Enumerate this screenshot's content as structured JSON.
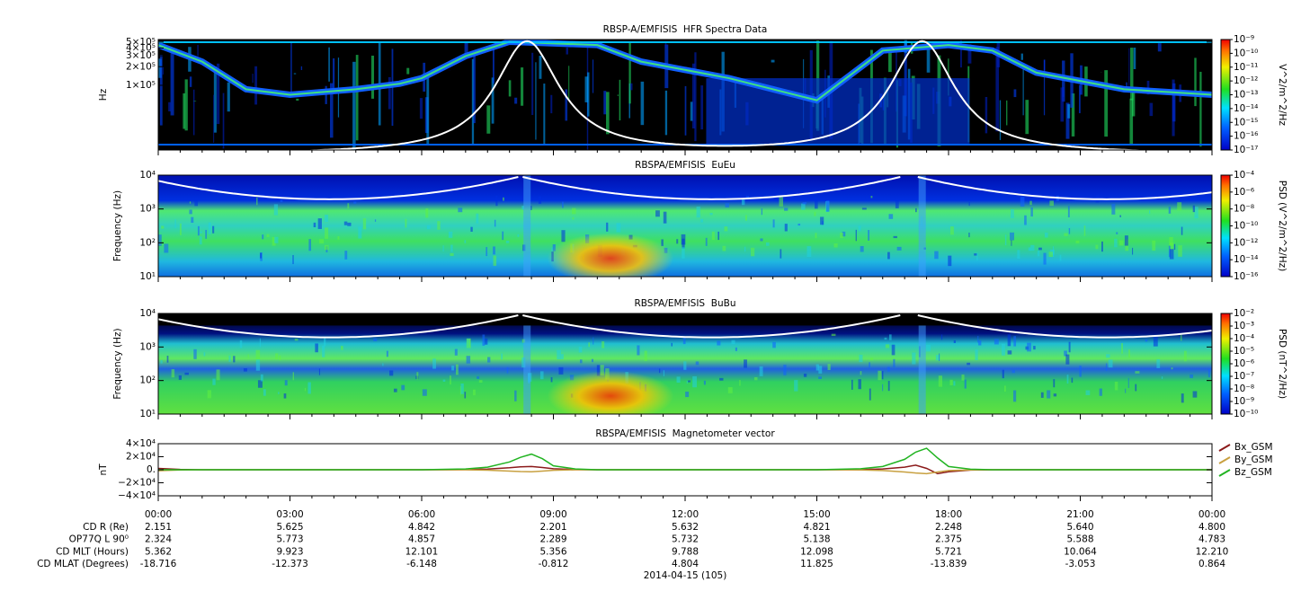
{
  "chart_data": [
    {
      "type": "spectrogram",
      "title": "RBSP-A/EMFISIS  HFR Spectra Data",
      "y_label": "Hz",
      "log_y": true,
      "xlim": [
        0,
        24
      ],
      "xticks": [
        0,
        3,
        6,
        9,
        12,
        15,
        18,
        21,
        24
      ],
      "ylim": [
        9000,
        550000
      ],
      "yticks": [
        {
          "value": 100000,
          "label": "1×10⁵"
        },
        {
          "value": 200000,
          "label": "2×10⁵"
        },
        {
          "value": 300000,
          "label": "3×10⁵"
        },
        {
          "value": 400000,
          "label": "4×10⁵"
        },
        {
          "value": 500000,
          "label": "5×10⁵"
        }
      ],
      "colorbar_label": "V^2/m^2/Hz",
      "clim": [
        1e-17,
        1e-09
      ],
      "cticks": [
        {
          "value": 1e-17,
          "label": "10⁻¹⁷"
        },
        {
          "value": 1e-16,
          "label": "10⁻¹⁶"
        },
        {
          "value": 1e-15,
          "label": "10⁻¹⁵"
        },
        {
          "value": 1e-14,
          "label": "10⁻¹⁴"
        },
        {
          "value": 1e-13,
          "label": "10⁻¹³"
        },
        {
          "value": 1e-12,
          "label": "10⁻¹²"
        },
        {
          "value": 1e-11,
          "label": "10⁻¹¹"
        },
        {
          "value": 1e-10,
          "label": "10⁻¹⁰"
        },
        {
          "value": 1e-09,
          "label": "10⁻⁹"
        }
      ]
    },
    {
      "type": "spectrogram",
      "title": "RBSPA/EMFISIS  EuEu",
      "y_label": "Frequency (Hz)",
      "log_y": true,
      "xlim": [
        0,
        24
      ],
      "xticks": [
        0,
        3,
        6,
        9,
        12,
        15,
        18,
        21,
        24
      ],
      "ylim": [
        10,
        10000
      ],
      "yticks": [
        {
          "value": 10,
          "label": "10¹"
        },
        {
          "value": 100,
          "label": "10²"
        },
        {
          "value": 1000,
          "label": "10³"
        },
        {
          "value": 10000,
          "label": "10⁴"
        }
      ],
      "colorbar_label": "PSD (V^2/m^2/Hz)",
      "clim": [
        1e-16,
        0.0001
      ],
      "cticks": [
        {
          "value": 1e-16,
          "label": "10⁻¹⁶"
        },
        {
          "value": 1e-14,
          "label": "10⁻¹⁴"
        },
        {
          "value": 1e-12,
          "label": "10⁻¹²"
        },
        {
          "value": 1e-10,
          "label": "10⁻¹⁰"
        },
        {
          "value": 1e-08,
          "label": "10⁻⁸"
        },
        {
          "value": 1e-06,
          "label": "10⁻⁶"
        },
        {
          "value": 0.0001,
          "label": "10⁻⁴"
        }
      ]
    },
    {
      "type": "spectrogram",
      "title": "RBSPA/EMFISIS  BuBu",
      "y_label": "Frequency (Hz)",
      "log_y": true,
      "xlim": [
        0,
        24
      ],
      "xticks": [
        0,
        3,
        6,
        9,
        12,
        15,
        18,
        21,
        24
      ],
      "ylim": [
        10,
        10000
      ],
      "yticks": [
        {
          "value": 10,
          "label": "10¹"
        },
        {
          "value": 100,
          "label": "10²"
        },
        {
          "value": 1000,
          "label": "10³"
        },
        {
          "value": 10000,
          "label": "10⁴"
        }
      ],
      "colorbar_label": "PSD (nT^2/Hz)",
      "clim": [
        1e-10,
        0.01
      ],
      "cticks": [
        {
          "value": 1e-10,
          "label": "10⁻¹⁰"
        },
        {
          "value": 1e-09,
          "label": "10⁻⁹"
        },
        {
          "value": 1e-08,
          "label": "10⁻⁸"
        },
        {
          "value": 1e-07,
          "label": "10⁻⁷"
        },
        {
          "value": 1e-06,
          "label": "10⁻⁶"
        },
        {
          "value": 1e-05,
          "label": "10⁻⁵"
        },
        {
          "value": 0.0001,
          "label": "10⁻⁴"
        },
        {
          "value": 0.001,
          "label": "10⁻³"
        },
        {
          "value": 0.01,
          "label": "10⁻²"
        }
      ]
    },
    {
      "type": "line",
      "title": "RBSPA/EMFISIS  Magnetometer vector",
      "y_label": "nT",
      "xlim": [
        0,
        24
      ],
      "xticks": [
        {
          "value": 0,
          "label": "00:00"
        },
        {
          "value": 3,
          "label": "03:00"
        },
        {
          "value": 6,
          "label": "06:00"
        },
        {
          "value": 9,
          "label": "09:00"
        },
        {
          "value": 12,
          "label": "12:00"
        },
        {
          "value": 15,
          "label": "15:00"
        },
        {
          "value": 18,
          "label": "18:00"
        },
        {
          "value": 21,
          "label": "21:00"
        },
        {
          "value": 24,
          "label": "00:00"
        }
      ],
      "ylim": [
        -40000,
        40000
      ],
      "yticks": [
        {
          "value": -40000,
          "label": "−4×10⁴"
        },
        {
          "value": -20000,
          "label": "−2×10⁴"
        },
        {
          "value": 0,
          "label": "0."
        },
        {
          "value": 20000,
          "label": "2×10⁴"
        },
        {
          "value": 40000,
          "label": "4×10⁴"
        }
      ],
      "x": [
        0,
        0.5,
        1,
        2,
        3,
        4,
        5,
        6,
        7,
        7.5,
        8,
        8.25,
        8.5,
        8.75,
        9,
        9.5,
        10,
        11,
        12,
        13,
        14,
        15,
        16,
        16.5,
        17,
        17.25,
        17.5,
        17.75,
        18,
        18.5,
        19,
        20,
        21,
        22,
        23,
        24
      ],
      "series": [
        {
          "name": "Bx_GSM",
          "color": "#8b1a1a",
          "values": [
            2000,
            500,
            0,
            0,
            0,
            0,
            0,
            0,
            300,
            1000,
            3000,
            4500,
            5000,
            3500,
            1500,
            300,
            0,
            0,
            0,
            0,
            0,
            0,
            300,
            1200,
            4000,
            7000,
            2000,
            -6000,
            -3000,
            -500,
            0,
            0,
            0,
            0,
            0,
            0
          ]
        },
        {
          "name": "By_GSM",
          "color": "#c8a040",
          "values": [
            -1500,
            -300,
            0,
            0,
            0,
            0,
            0,
            0,
            -200,
            -700,
            -2000,
            -2800,
            -3000,
            -2000,
            -800,
            -200,
            0,
            0,
            0,
            0,
            0,
            0,
            -300,
            -1200,
            -3500,
            -5000,
            -6000,
            -3500,
            -1200,
            -300,
            0,
            0,
            0,
            0,
            0,
            0
          ]
        },
        {
          "name": "Bz_GSM",
          "color": "#22b422",
          "values": [
            0,
            0,
            0,
            0,
            0,
            0,
            0,
            0,
            1200,
            4000,
            12000,
            19000,
            24000,
            17000,
            6000,
            1200,
            0,
            0,
            0,
            0,
            0,
            0,
            1500,
            5000,
            16000,
            27000,
            33000,
            18000,
            5000,
            800,
            0,
            0,
            0,
            0,
            0,
            0
          ]
        }
      ]
    }
  ],
  "ephemeris": {
    "date": "2014-04-15 (105)",
    "rows": [
      {
        "label": "CD R (Re)",
        "values": [
          "2.151",
          "5.625",
          "4.842",
          "2.201",
          "5.632",
          "4.821",
          "2.248",
          "5.640",
          "4.800"
        ]
      },
      {
        "label": "OP77Q L 90⁰",
        "values": [
          "2.324",
          "5.773",
          "4.857",
          "2.289",
          "5.732",
          "5.138",
          "2.375",
          "5.588",
          "4.783"
        ]
      },
      {
        "label": "CD MLT (Hours)",
        "values": [
          "5.362",
          "9.923",
          "12.101",
          "5.356",
          "9.788",
          "12.098",
          "5.721",
          "10.064",
          "12.210"
        ]
      },
      {
        "label": "CD MLAT (Degrees)",
        "values": [
          "-18.716",
          "-12.373",
          "-6.148",
          "-0.812",
          "4.804",
          "11.825",
          "-13.839",
          "-3.053",
          "0.864"
        ]
      }
    ]
  }
}
